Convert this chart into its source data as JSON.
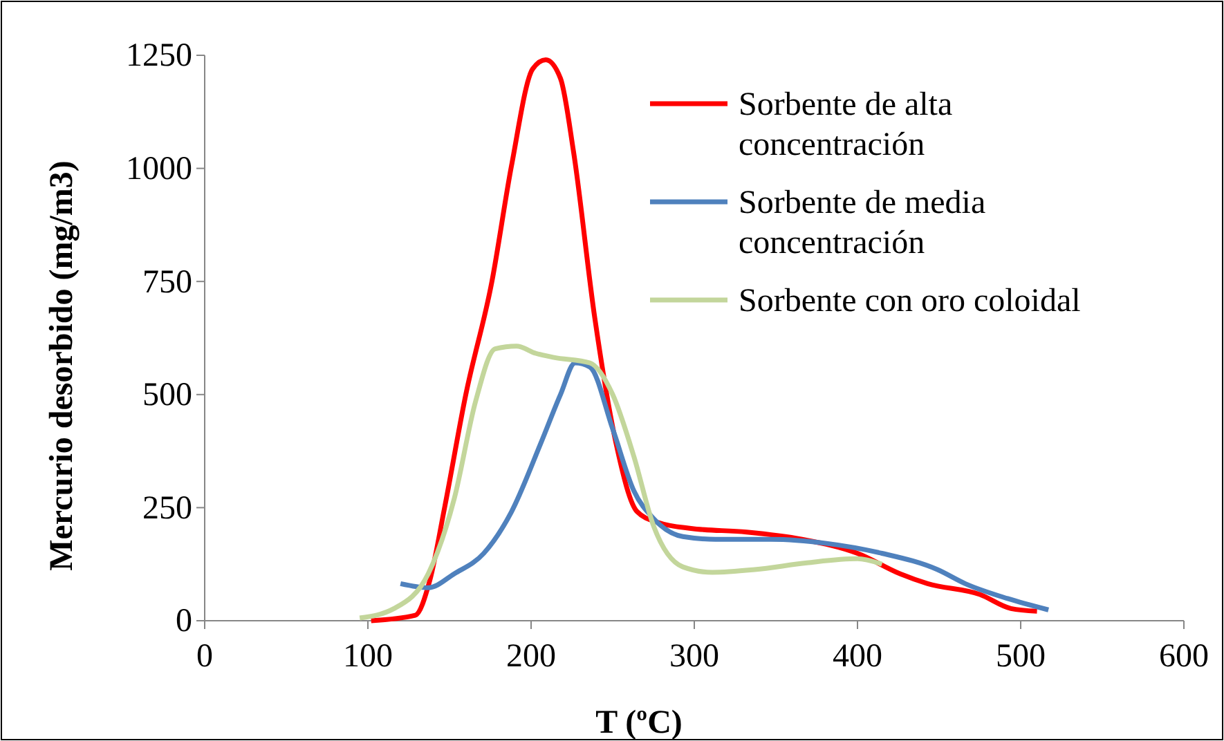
{
  "chart_data": {
    "type": "line",
    "xlabel": "T (ºC)",
    "ylabel": "Mercurio desorbido (mg/m3)",
    "xlim": [
      0,
      600
    ],
    "xticks": [
      0,
      100,
      200,
      300,
      400,
      500,
      600
    ],
    "ylim": [
      0,
      1250
    ],
    "yticks": [
      0,
      250,
      500,
      750,
      1000,
      1250
    ],
    "grid": false,
    "legend": "top right",
    "marker": "none",
    "line_style": "solid",
    "series": [
      {
        "name": "Sorbente de alta concentración",
        "color": "#ff0000",
        "x": [
          102,
          129,
          138,
          147,
          160,
          176,
          188,
          201,
          209,
          218,
          226,
          239,
          252,
          265,
          278,
          298,
          332,
          366,
          400,
          426,
          443,
          475,
          494,
          510
        ],
        "values": [
          0,
          12,
          90,
          250,
          500,
          750,
          1006,
          1220,
          1240,
          1199,
          1037,
          670,
          393,
          241,
          217,
          204,
          196,
          180,
          149,
          104,
          82,
          58,
          27,
          21
        ]
      },
      {
        "name": "Sorbente de media concentración",
        "color": "#4f81bd",
        "x": [
          120,
          137,
          153,
          171,
          188,
          206,
          218,
          227,
          236,
          250,
          263,
          275,
          293,
          313,
          347,
          381,
          415,
          449,
          466,
          492,
          517
        ],
        "values": [
          82,
          73,
          104,
          149,
          241,
          393,
          500,
          570,
          561,
          424,
          287,
          226,
          186,
          180,
          180,
          171,
          149,
          113,
          82,
          49,
          24
        ]
      },
      {
        "name": "Sorbente con oro coloidal",
        "color": "#c3d69b",
        "x": [
          95,
          116,
          137,
          153,
          166,
          178,
          191,
          203,
          214,
          236,
          250,
          263,
          275,
          293,
          311,
          337,
          369,
          400,
          415
        ],
        "values": [
          6,
          27,
          104,
          271,
          485,
          601,
          607,
          591,
          582,
          570,
          500,
          363,
          210,
          119,
          107,
          113,
          128,
          137,
          125
        ]
      }
    ]
  }
}
